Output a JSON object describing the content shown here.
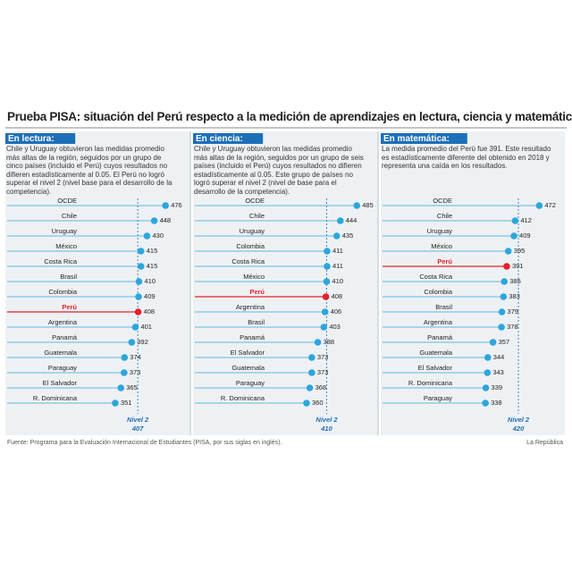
{
  "header": {
    "title": "Prueba PISA: situación del Perú respecto a la medición de aprendizajes en lectura, ciencia y matemática"
  },
  "chart_data": [
    {
      "type": "lollipop",
      "label": "En lectura:",
      "description": "Chile y Uruguay obtuvieron las medidas promedio más altas de la región, seguidos por un grupo de cinco países (incluido el Perú) cuyos resultados no difieren estadísticamente al 0.05. El Perú no logró superar el nivel 2 (nivel base para el desarrollo de la competencia).",
      "categories": [
        "OCDE",
        "Chile",
        "Uruguay",
        "México",
        "Costa Rica",
        "Brasil",
        "Colombia",
        "Perú",
        "Argentina",
        "Panamá",
        "Guatemala",
        "Paraguay",
        "El Salvador",
        "R. Dominicana"
      ],
      "values": [
        476,
        448,
        430,
        415,
        415,
        410,
        409,
        408,
        401,
        392,
        374,
        373,
        365,
        351
      ],
      "color": "#2ba6de",
      "highlight": {
        "index": 7,
        "color": "#e2222a"
      },
      "threshold": {
        "label": "Nivel 2",
        "value": 407
      },
      "xlim": [
        300,
        500
      ]
    },
    {
      "type": "lollipop",
      "label": "En ciencia:",
      "description": "Chile y Uruguay obtuvieron las medidas promedio más altas de la región, seguidos por un grupo de seis países (incluido el Perú) cuyos resultados no difieren estadísticamente al 0.05. Este grupo de países no logró superar el nivel 2 (nivel de base para el desarrollo de la competencia).",
      "categories": [
        "OCDE",
        "Chile",
        "Uruguay",
        "Colombia",
        "Costa Rica",
        "México",
        "Perú",
        "Argentina",
        "Brasil",
        "Panamá",
        "El Salvador",
        "Guatemala",
        "Paraguay",
        "R. Dominicana"
      ],
      "values": [
        485,
        444,
        435,
        411,
        411,
        410,
        408,
        406,
        403,
        388,
        373,
        373,
        368,
        360
      ],
      "color": "#2ba6de",
      "highlight": {
        "index": 6,
        "color": "#e2222a"
      },
      "threshold": {
        "label": "Nivel 2",
        "value": 410
      },
      "xlim": [
        300,
        500
      ]
    },
    {
      "type": "lollipop",
      "label": "En matemática:",
      "description": "La medida promedio del Perú fue 391. Este resultado es estadísticamente diferente del obtenido en 2018 y representa una caída en los resultados.",
      "categories": [
        "OCDE",
        "Chile",
        "Uruguay",
        "México",
        "Perú",
        "Costa Rica",
        "Colombia",
        "Brasil",
        "Argentina",
        "Panamá",
        "Guatemala",
        "El Salvador",
        "R. Dominicana",
        "Paraguay"
      ],
      "values": [
        472,
        412,
        409,
        395,
        391,
        385,
        383,
        379,
        378,
        357,
        344,
        343,
        339,
        338
      ],
      "color": "#2ba6de",
      "highlight": {
        "index": 4,
        "color": "#e2222a"
      },
      "threshold": {
        "label": "Nivel 2",
        "value": 420
      },
      "xlim": [
        300,
        500
      ]
    }
  ],
  "footer": {
    "source": "Fuente: Programa para la Evaluación Internacional de Estudiantes (PISA, por sus siglas en inglés).",
    "credit": "La República"
  }
}
